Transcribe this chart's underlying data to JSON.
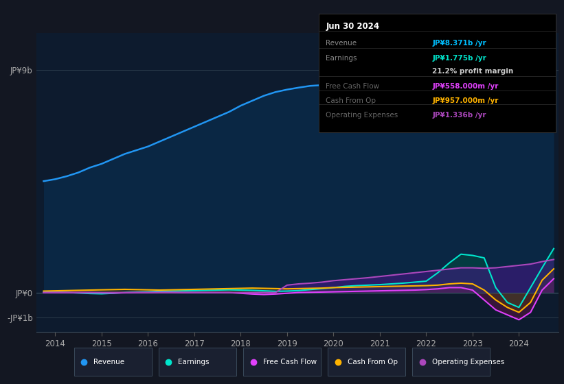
{
  "background_color": "#131722",
  "plot_bg_color": "#0d1b2e",
  "info_box": {
    "title": "Jun 30 2024",
    "title_color": "#ffffff",
    "bg_color": "#000000",
    "border_color": "#333333",
    "rows": [
      {
        "label": "Revenue",
        "value": "JP¥8.371b /yr",
        "value_color": "#00bfff",
        "label_color": "#888888"
      },
      {
        "label": "Earnings",
        "value": "JP¥1.775b /yr",
        "value_color": "#00e5cc",
        "label_color": "#888888"
      },
      {
        "label": "",
        "value": "21.2% profit margin",
        "value_color": "#cccccc",
        "label_color": "#888888"
      },
      {
        "label": "Free Cash Flow",
        "value": "JP¥558.000m /yr",
        "value_color": "#e040fb",
        "label_color": "#666666"
      },
      {
        "label": "Cash From Op",
        "value": "JP¥957.000m /yr",
        "value_color": "#ffb300",
        "label_color": "#666666"
      },
      {
        "label": "Operating Expenses",
        "value": "JP¥1.336b /yr",
        "value_color": "#ab47bc",
        "label_color": "#666666"
      }
    ]
  },
  "yticks_labels": [
    "JP¥9b",
    "JP¥0",
    "-JP¥1b"
  ],
  "ytick_values": [
    9000000000,
    0,
    -1000000000
  ],
  "ylim": [
    -1600000000,
    10500000000
  ],
  "xlim": [
    2013.6,
    2024.85
  ],
  "xticks": [
    2014,
    2015,
    2016,
    2017,
    2018,
    2019,
    2020,
    2021,
    2022,
    2023,
    2024
  ],
  "legend": [
    {
      "label": "Revenue",
      "color": "#2196f3"
    },
    {
      "label": "Earnings",
      "color": "#00e5cc"
    },
    {
      "label": "Free Cash Flow",
      "color": "#e040fb"
    },
    {
      "label": "Cash From Op",
      "color": "#ffb300"
    },
    {
      "label": "Operating Expenses",
      "color": "#ab47bc"
    }
  ],
  "series": {
    "years": [
      2013.75,
      2014.0,
      2014.25,
      2014.5,
      2014.75,
      2015.0,
      2015.25,
      2015.5,
      2015.75,
      2016.0,
      2016.25,
      2016.5,
      2016.75,
      2017.0,
      2017.25,
      2017.5,
      2017.75,
      2018.0,
      2018.25,
      2018.5,
      2018.75,
      2019.0,
      2019.25,
      2019.5,
      2019.75,
      2020.0,
      2020.25,
      2020.5,
      2020.75,
      2021.0,
      2021.25,
      2021.5,
      2021.75,
      2022.0,
      2022.25,
      2022.5,
      2022.75,
      2023.0,
      2023.25,
      2023.5,
      2023.75,
      2024.0,
      2024.25,
      2024.5,
      2024.75
    ],
    "revenue": [
      4500,
      4580,
      4700,
      4850,
      5050,
      5200,
      5400,
      5600,
      5750,
      5900,
      6100,
      6300,
      6500,
      6700,
      6900,
      7100,
      7300,
      7550,
      7750,
      7950,
      8100,
      8200,
      8280,
      8350,
      8380,
      8400,
      8380,
      8360,
      8300,
      8250,
      8280,
      8300,
      8320,
      8350,
      8370,
      8390,
      8380,
      8300,
      8200,
      8050,
      7950,
      8050,
      8150,
      8250,
      8371
    ],
    "earnings": [
      20,
      10,
      5,
      -20,
      -40,
      -50,
      -30,
      0,
      20,
      30,
      50,
      60,
      70,
      80,
      90,
      100,
      110,
      100,
      90,
      70,
      50,
      60,
      80,
      120,
      160,
      200,
      250,
      280,
      300,
      320,
      350,
      380,
      420,
      460,
      800,
      1200,
      1550,
      1500,
      1400,
      200,
      -400,
      -600,
      200,
      1000,
      1775
    ],
    "free_cash_flow": [
      0,
      0,
      0,
      0,
      0,
      -10,
      -20,
      -10,
      0,
      0,
      10,
      10,
      0,
      0,
      0,
      0,
      0,
      -30,
      -60,
      -80,
      -60,
      -30,
      0,
      10,
      20,
      30,
      40,
      50,
      60,
      70,
      80,
      90,
      100,
      120,
      150,
      200,
      200,
      100,
      -300,
      -700,
      -900,
      -1100,
      -800,
      100,
      558
    ],
    "cash_from_op": [
      60,
      70,
      80,
      90,
      100,
      110,
      120,
      130,
      120,
      110,
      100,
      110,
      120,
      130,
      140,
      150,
      160,
      170,
      180,
      170,
      160,
      150,
      160,
      170,
      180,
      200,
      210,
      220,
      230,
      240,
      250,
      260,
      270,
      280,
      300,
      350,
      380,
      350,
      100,
      -300,
      -600,
      -800,
      -400,
      500,
      957
    ],
    "op_expenses": [
      0,
      0,
      0,
      0,
      0,
      0,
      0,
      0,
      0,
      0,
      0,
      0,
      0,
      0,
      0,
      0,
      0,
      0,
      0,
      0,
      0,
      300,
      350,
      380,
      420,
      480,
      520,
      560,
      600,
      650,
      700,
      750,
      800,
      850,
      900,
      950,
      1000,
      1000,
      980,
      1000,
      1050,
      1100,
      1150,
      1250,
      1336
    ]
  }
}
